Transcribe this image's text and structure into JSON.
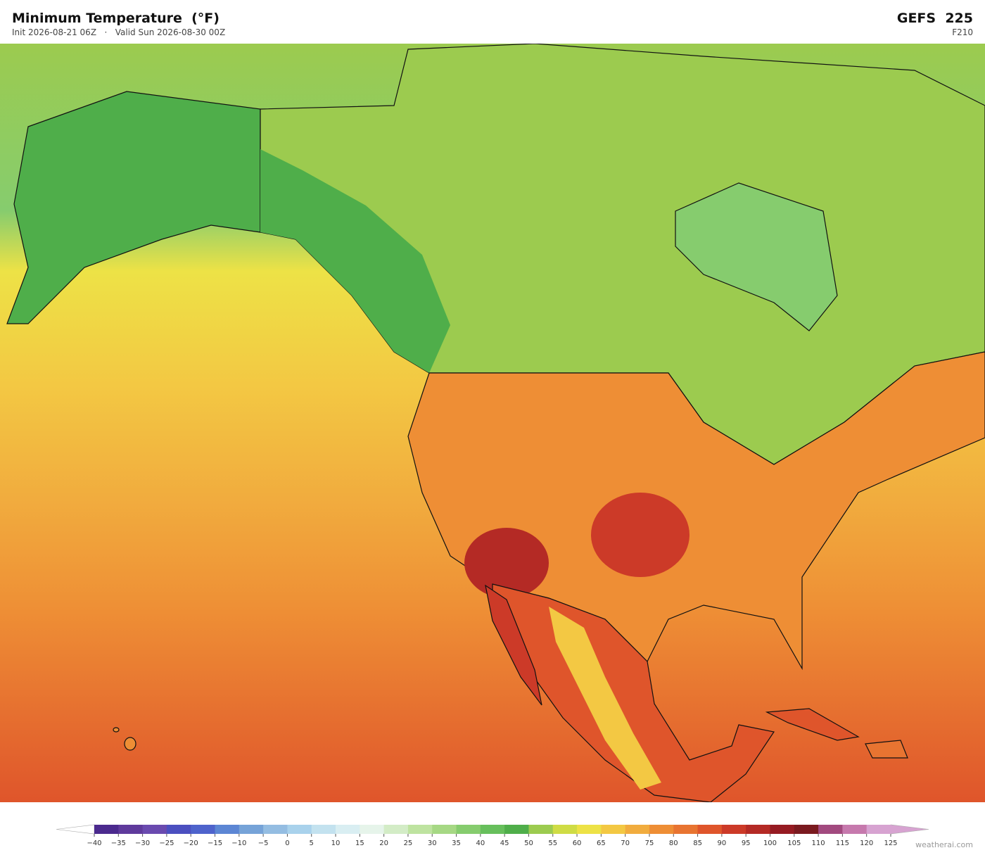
{
  "header": {
    "title": "Minimum Temperature  (°F)",
    "subtitle": "Init 2026-08-21 06Z   ·   Valid Sun 2026-08-30 00Z",
    "model": "GEFS  225",
    "forecast_hour": "F210"
  },
  "colorbar": {
    "ticks": [
      {
        "value": -40,
        "label": "−40"
      },
      {
        "value": -35,
        "label": "−35"
      },
      {
        "value": -30,
        "label": "−30"
      },
      {
        "value": -25,
        "label": "−25"
      },
      {
        "value": -20,
        "label": "−20"
      },
      {
        "value": -15,
        "label": "−15"
      },
      {
        "value": -10,
        "label": "−10"
      },
      {
        "value": -5,
        "label": "−5"
      },
      0,
      5,
      10,
      15,
      20,
      25,
      30,
      35,
      40,
      45,
      50,
      55,
      60,
      65,
      70,
      75,
      80,
      85,
      90,
      95,
      100,
      105,
      110,
      115,
      120,
      125
    ],
    "colors": [
      "#4b2a8e",
      "#5f3a9c",
      "#6a4aaf",
      "#4b4fc0",
      "#4e63cc",
      "#5c86d4",
      "#76a3d8",
      "#94bde2",
      "#a9d2ec",
      "#c3e2ef",
      "#d9eef2",
      "#e6f4ea",
      "#d3ecc6",
      "#bee3a0",
      "#a6d884",
      "#86cc6e",
      "#67bf5c",
      "#4fae4a",
      "#9ccb4f",
      "#cfdc45",
      "#ede246",
      "#f3c843",
      "#f1ac3e",
      "#ee8e35",
      "#e87431",
      "#df552b",
      "#cc3a28",
      "#b42a25",
      "#961b22",
      "#7a1a1f",
      "#a24a7f",
      "#c679ad",
      "#d7a3d1"
    ],
    "under_color": "#ffffff",
    "over_color": "#d7a3d1"
  },
  "watermark": "weatherai.com"
}
